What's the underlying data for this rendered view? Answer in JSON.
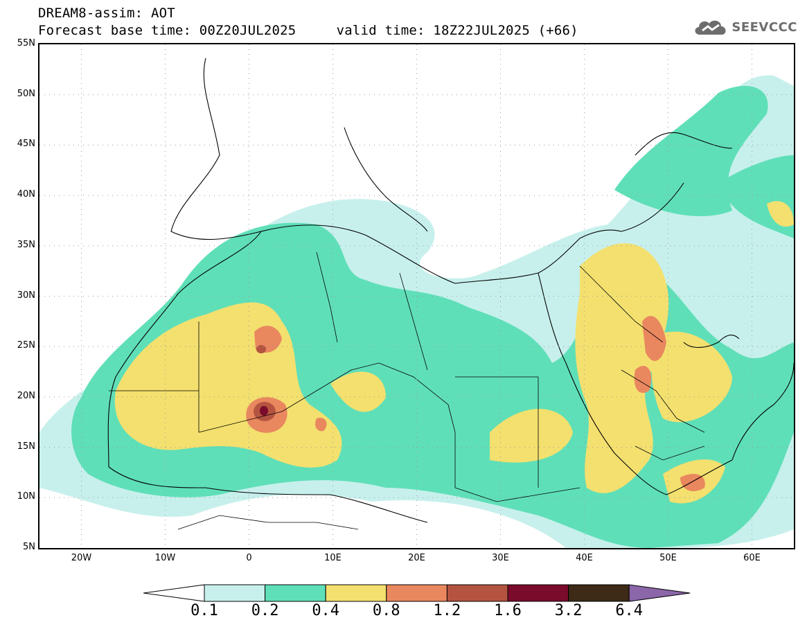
{
  "header": {
    "line1": "DREAM8-assim: AOT",
    "line2": "Forecast base time: 00Z20JUL2025     valid time: 18Z22JUL2025 (+66)"
  },
  "logo": {
    "text": "SEEVCCC",
    "icon": "cloud-icon",
    "color": "#6d6d6d"
  },
  "map": {
    "lat_ticks": [
      "55N",
      "50N",
      "45N",
      "40N",
      "35N",
      "30N",
      "25N",
      "20N",
      "15N",
      "10N",
      "5N"
    ],
    "lon_ticks": [
      "20W",
      "10W",
      "0",
      "10E",
      "20E",
      "30E",
      "40E",
      "50E",
      "60E"
    ],
    "lat_range": [
      5,
      55
    ],
    "lon_range": [
      -25,
      65
    ],
    "grid": true
  },
  "colorbar": {
    "levels": [
      "0.1",
      "0.2",
      "0.4",
      "0.8",
      "1.2",
      "1.6",
      "3.2",
      "6.4"
    ],
    "colors": [
      "#ffffff",
      "#c7f0ec",
      "#5fdfb8",
      "#f3e06f",
      "#e9875f",
      "#b45440",
      "#7a0b2a",
      "#3d2a17",
      "#8b66a8"
    ]
  }
}
